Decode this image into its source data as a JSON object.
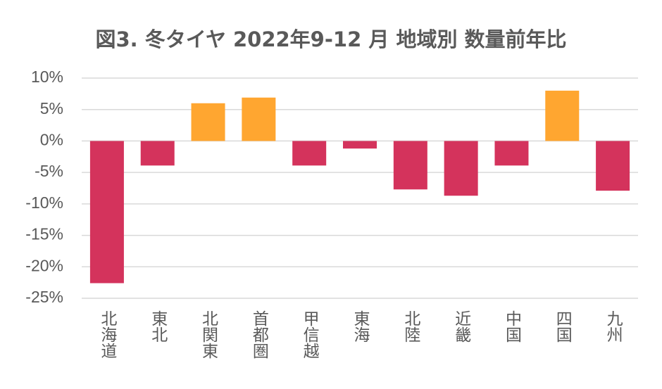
{
  "chart_data": {
    "type": "bar",
    "title": "図3. 冬タイヤ 2022年9-12 月 地域別 数量前年比",
    "categories": [
      "北海道",
      "東北",
      "北関東",
      "首都圏",
      "甲信越",
      "東海",
      "北陸",
      "近畿",
      "中国",
      "四国",
      "九州"
    ],
    "values": [
      -22.6,
      -3.9,
      6.0,
      6.9,
      -3.9,
      -1.2,
      -7.7,
      -8.7,
      -3.9,
      8.0,
      -7.9
    ],
    "colors": [
      "#d4335c",
      "#d4335c",
      "#ffa630",
      "#ffa630",
      "#d4335c",
      "#d4335c",
      "#d4335c",
      "#d4335c",
      "#d4335c",
      "#ffa630",
      "#d4335c"
    ],
    "ylim": [
      -25,
      10
    ],
    "yticks": [
      {
        "value": -25,
        "label": "-25%"
      },
      {
        "value": -20,
        "label": "-20%"
      },
      {
        "value": -15,
        "label": "-15%"
      },
      {
        "value": -10,
        "label": "-10%"
      },
      {
        "value": -5,
        "label": "-5%"
      },
      {
        "value": 0,
        "label": "0%"
      },
      {
        "value": 5,
        "label": "5%"
      },
      {
        "value": 10,
        "label": "10%"
      }
    ],
    "grid": true
  }
}
